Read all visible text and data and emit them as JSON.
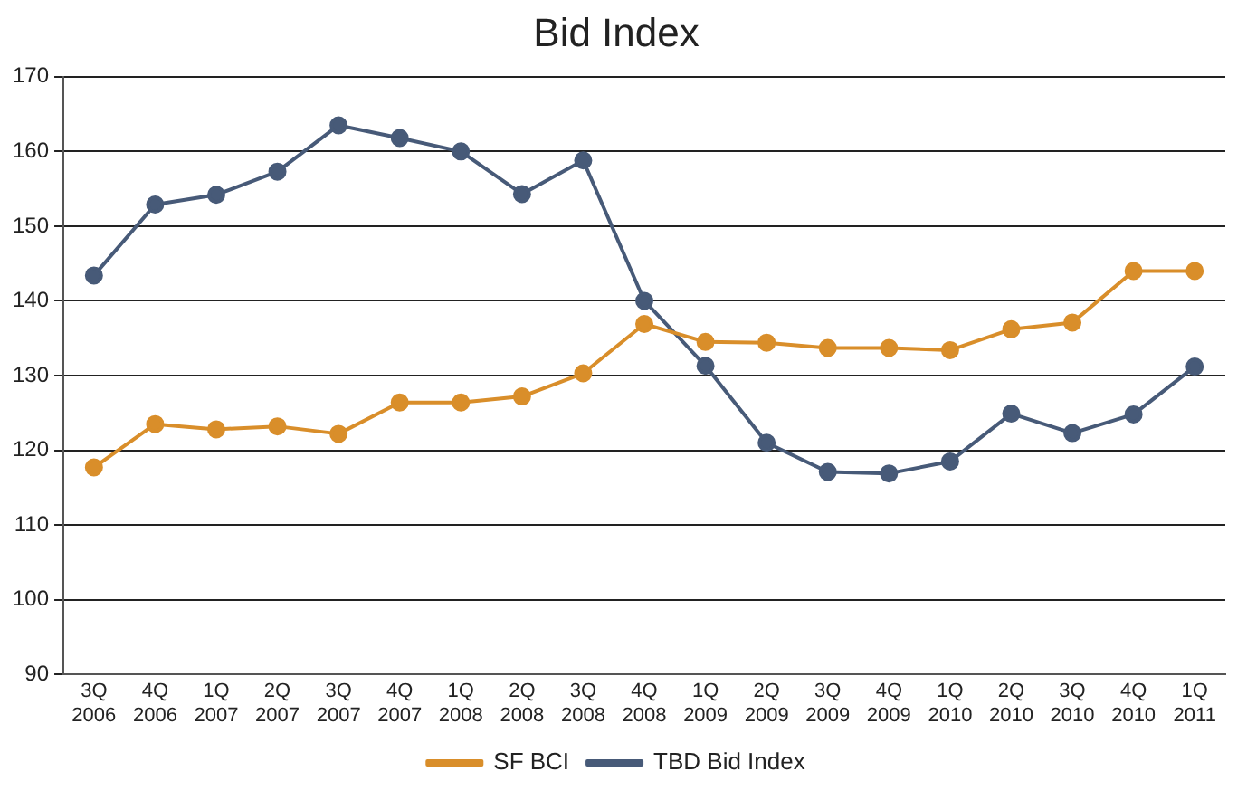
{
  "chart_data": {
    "type": "line",
    "title": "Bid Index",
    "categories": [
      "3Q\n2006",
      "4Q\n2006",
      "1Q\n2007",
      "2Q\n2007",
      "3Q\n2007",
      "4Q\n2007",
      "1Q\n2008",
      "2Q\n2008",
      "3Q\n2008",
      "4Q\n2008",
      "1Q\n2009",
      "2Q\n2009",
      "3Q\n2009",
      "4Q\n2009",
      "1Q\n2010",
      "2Q\n2010",
      "3Q\n2010",
      "4Q\n2010",
      "1Q\n2011"
    ],
    "series": [
      {
        "name": "SF BCI",
        "color": "#d98e2a",
        "values": [
          117.7,
          123.5,
          122.8,
          123.2,
          122.2,
          126.4,
          126.4,
          127.2,
          130.3,
          136.9,
          134.5,
          134.4,
          133.7,
          133.7,
          133.4,
          136.2,
          137.1,
          144.0,
          144.0
        ]
      },
      {
        "name": "TBD Bid Index",
        "color": "#475a78",
        "values": [
          143.4,
          152.9,
          154.2,
          157.3,
          163.5,
          161.8,
          160.0,
          154.3,
          158.8,
          140.0,
          131.3,
          121.0,
          117.1,
          116.9,
          118.5,
          124.9,
          122.3,
          124.8,
          131.2
        ]
      }
    ],
    "ylim": [
      90,
      170
    ],
    "yticks": [
      90,
      100,
      110,
      120,
      130,
      140,
      150,
      160,
      170
    ],
    "grid": "y",
    "legend": "bottom",
    "marker": "circle",
    "line_style": "solid"
  }
}
